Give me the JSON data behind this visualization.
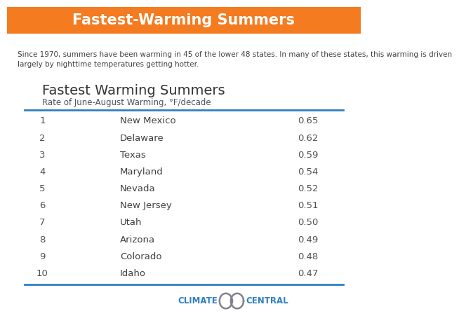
{
  "header_title": "Fastest-Warming Summers",
  "header_bg_color": "#F47B20",
  "header_text_color": "#FFFFFF",
  "intro_text": "Since 1970, summers have been warming in 45 of the lower 48 states. In many of these states, this warming is driven\nlargely by nighttime temperatures getting hotter.",
  "table_title": "Fastest Warming Summers",
  "table_subtitle": "Rate of June-August Warming, °F/decade",
  "line_color": "#3080C0",
  "ranks": [
    1,
    2,
    3,
    4,
    5,
    6,
    7,
    8,
    9,
    10
  ],
  "states": [
    "New Mexico",
    "Delaware",
    "Texas",
    "Maryland",
    "Nevada",
    "New Jersey",
    "Utah",
    "Arizona",
    "Colorado",
    "Idaho"
  ],
  "values": [
    0.65,
    0.62,
    0.59,
    0.54,
    0.52,
    0.51,
    0.5,
    0.49,
    0.48,
    0.47
  ],
  "bg_color": "#FFFFFF",
  "rank_color": "#505050",
  "value_color": "#505050",
  "state_color": "#404040",
  "title_color": "#333333",
  "subtitle_color": "#505060",
  "intro_color": "#404040",
  "logo_text_color": "#3080C0",
  "logo_icon_color": "#808090"
}
